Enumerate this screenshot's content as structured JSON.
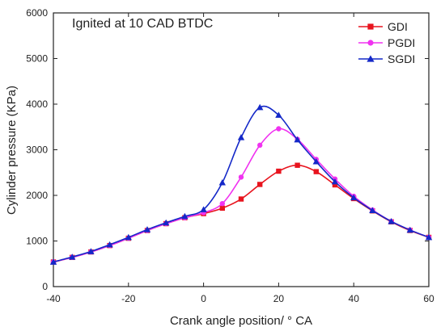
{
  "chart_data": {
    "type": "line",
    "annotation": "Ignited at 10 CAD BTDC",
    "xlabel": "Crank angle position/ ° CA",
    "ylabel": "Cylinder pressure (KPa)",
    "xlim": [
      -40,
      60
    ],
    "ylim": [
      0,
      6000
    ],
    "x_ticks": [
      -40,
      -20,
      0,
      20,
      40,
      60
    ],
    "y_ticks": [
      0,
      1000,
      2000,
      3000,
      4000,
      5000,
      6000
    ],
    "grid": false,
    "legend_position": "top-right",
    "series": [
      {
        "name": "GDI",
        "color": "#e8141e",
        "marker": "square",
        "x": [
          -40,
          -35,
          -30,
          -25,
          -20,
          -15,
          -10,
          -5,
          0,
          5,
          10,
          15,
          20,
          25,
          30,
          35,
          40,
          45,
          50,
          55,
          60
        ],
        "y": [
          540,
          640,
          760,
          900,
          1060,
          1230,
          1380,
          1510,
          1600,
          1720,
          1920,
          2240,
          2530,
          2660,
          2520,
          2230,
          1930,
          1660,
          1420,
          1230,
          1080
        ]
      },
      {
        "name": "PGDI",
        "color": "#f032f0",
        "marker": "circle",
        "x": [
          -40,
          -35,
          -30,
          -25,
          -20,
          -15,
          -10,
          -5,
          0,
          5,
          10,
          15,
          20,
          25,
          30,
          35,
          40,
          45,
          50,
          55,
          60
        ],
        "y": [
          540,
          640,
          760,
          900,
          1060,
          1230,
          1380,
          1510,
          1620,
          1820,
          2400,
          3100,
          3460,
          3230,
          2790,
          2360,
          1980,
          1680,
          1430,
          1240,
          1080
        ]
      },
      {
        "name": "SGDI",
        "color": "#1428c8",
        "marker": "triangle",
        "x": [
          -40,
          -35,
          -30,
          -25,
          -20,
          -15,
          -10,
          -5,
          0,
          5,
          10,
          15,
          20,
          25,
          30,
          35,
          40,
          45,
          50,
          55,
          60
        ],
        "y": [
          540,
          650,
          770,
          920,
          1080,
          1250,
          1400,
          1540,
          1690,
          2280,
          3270,
          3930,
          3760,
          3220,
          2740,
          2300,
          1950,
          1670,
          1430,
          1240,
          1080
        ]
      }
    ]
  }
}
